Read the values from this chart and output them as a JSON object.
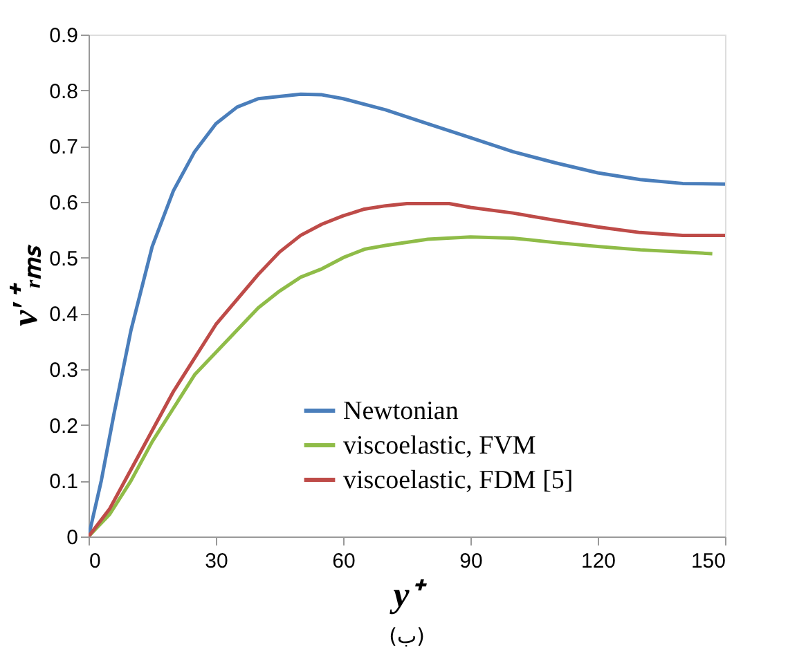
{
  "chart_data": {
    "type": "line",
    "xlabel": "y⁺",
    "ylabel": "v′⁺ᵣₘₛ",
    "xlim": [
      0,
      150
    ],
    "ylim": [
      0,
      0.9
    ],
    "xticks": [
      0,
      30,
      60,
      90,
      120,
      150
    ],
    "yticks": [
      0,
      0.1,
      0.2,
      0.3,
      0.4,
      0.5,
      0.6,
      0.7,
      0.8,
      0.9
    ],
    "grid": false,
    "legend": "bottom",
    "marker": "none",
    "line_style": "solid",
    "annotations": [
      "(ب)"
    ],
    "series": [
      {
        "name": "Newtonian",
        "color": "#4a7ebb",
        "x": [
          0,
          3,
          6,
          10,
          15,
          20,
          25,
          30,
          35,
          40,
          50,
          55,
          60,
          70,
          80,
          90,
          100,
          110,
          120,
          130,
          140,
          150
        ],
        "values": [
          0,
          0.1,
          0.22,
          0.37,
          0.52,
          0.62,
          0.69,
          0.74,
          0.77,
          0.785,
          0.793,
          0.792,
          0.785,
          0.765,
          0.74,
          0.715,
          0.69,
          0.67,
          0.652,
          0.64,
          0.633,
          0.632
        ]
      },
      {
        "name": "viscoelastic, FVM",
        "color": "#8fbc48",
        "x": [
          0,
          5,
          10,
          15,
          20,
          25,
          30,
          35,
          40,
          45,
          50,
          55,
          60,
          65,
          70,
          80,
          90,
          100,
          110,
          120,
          130,
          140,
          147
        ],
        "values": [
          0,
          0.04,
          0.1,
          0.17,
          0.23,
          0.29,
          0.33,
          0.37,
          0.41,
          0.44,
          0.465,
          0.48,
          0.5,
          0.515,
          0.522,
          0.533,
          0.537,
          0.535,
          0.527,
          0.52,
          0.514,
          0.51,
          0.507
        ]
      },
      {
        "name": "viscoelastic, FDM [5]",
        "color": "#be4b48",
        "x": [
          0,
          5,
          10,
          15,
          20,
          25,
          30,
          40,
          45,
          50,
          55,
          60,
          65,
          70,
          75,
          85,
          90,
          100,
          110,
          120,
          130,
          140,
          150
        ],
        "values": [
          0,
          0.05,
          0.12,
          0.19,
          0.26,
          0.32,
          0.38,
          0.47,
          0.51,
          0.54,
          0.56,
          0.575,
          0.587,
          0.593,
          0.597,
          0.597,
          0.59,
          0.58,
          0.567,
          0.555,
          0.545,
          0.54,
          0.54
        ]
      }
    ]
  }
}
